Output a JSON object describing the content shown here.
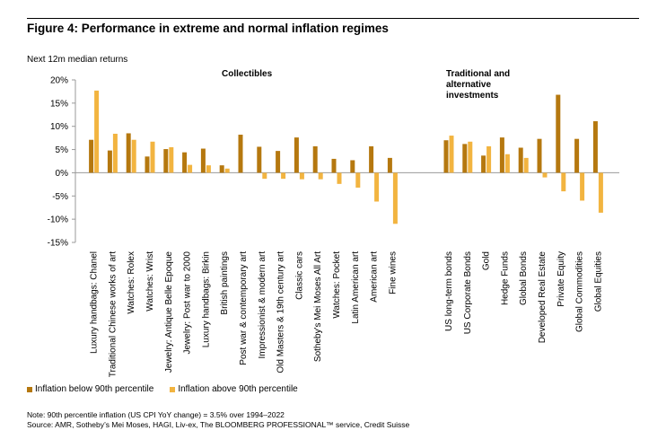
{
  "figure": {
    "title": "Figure 4: Performance in extreme and normal inflation regimes",
    "ylabel": "Next 12m median returns",
    "note": "Note: 90th percentile inflation (US CPI YoY change) = 3.5% over 1994–2022",
    "source": "Source: AMR, Sotheby’s Mei Moses, HAGI, Liv-ex, The BLOOMBERG PROFESSIONAL™ service, Credit Suisse"
  },
  "colors": {
    "below": "#b5780f",
    "above": "#f2b440",
    "axis": "#999999"
  },
  "chart_data": {
    "type": "bar",
    "ylim": [
      -15,
      20
    ],
    "yticks": [
      "20%",
      "15%",
      "10%",
      "5%",
      "0%",
      "-5%",
      "-10%",
      "-15%"
    ],
    "group_labels": [
      "Collectibles",
      "Traditional and alternative investments"
    ],
    "categories": [
      "Luxury handbags: Chanel",
      "Traditional Chinese works of art",
      "Watches: Rolex",
      "Watches: Wrist",
      "Jewelry: Antique Belle Epoque",
      "Jewelry: Post war to 2000",
      "Luxury handbags: Birkin",
      "British paintings",
      "Post war & contemporary art",
      "Impressionist & modern art",
      "Old Masters & 19th century art",
      "Classic cars",
      "Sotheby's Mei Moses All Art",
      "Watches: Pocket",
      "Latin American art",
      "American art",
      "Fine wines",
      "US long-term bonds",
      "US Corporate Bonds",
      "Gold",
      "Hedge Funds",
      "Global Bonds",
      "Developed Real Estate",
      "Private Equity",
      "Global Commodities",
      "Global Equities"
    ],
    "series": [
      {
        "name": "Inflation below 90th percentile",
        "values": [
          7.1,
          4.8,
          8.5,
          3.5,
          5.1,
          4.4,
          5.2,
          1.6,
          8.2,
          5.6,
          4.7,
          7.6,
          5.7,
          3.0,
          2.7,
          5.7,
          3.2,
          7.0,
          6.2,
          3.7,
          7.6,
          5.4,
          7.3,
          16.8,
          7.3,
          11.1
        ]
      },
      {
        "name": "Inflation above 90th percentile",
        "values": [
          17.7,
          8.4,
          7.1,
          6.7,
          5.5,
          1.7,
          1.6,
          0.9,
          0.0,
          -1.3,
          -1.3,
          -1.4,
          -1.4,
          -2.4,
          -3.2,
          -6.2,
          -11.0,
          8.0,
          6.7,
          5.7,
          4.0,
          3.2,
          -1.0,
          -4.0,
          -6.0,
          -8.6
        ]
      }
    ]
  }
}
